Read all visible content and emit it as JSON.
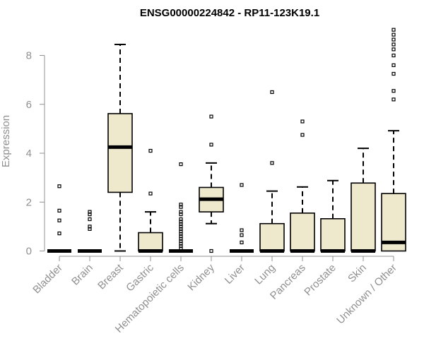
{
  "chart_data": {
    "type": "boxplot",
    "title": "ENSG00000224842 - RP11-123K19.1",
    "ylabel": "Expression",
    "xlabel": "",
    "ylim": [
      0,
      9.2
    ],
    "yticks": [
      0,
      2,
      4,
      6,
      8
    ],
    "grid": false,
    "legend": "none",
    "colors": {
      "box_fill": "#EEE8CD",
      "box_stroke": "#000000",
      "median": "#000000",
      "axis": "#909090",
      "title": "#000000"
    },
    "categories": [
      "Bladder",
      "Brain",
      "Breast",
      "Gastric",
      "Hematopoietic cells",
      "Kidney",
      "Liver",
      "Lung",
      "Pancreas",
      "Prostate",
      "Skin",
      "Unknown / Other"
    ],
    "series": [
      {
        "category": "Bladder",
        "q1": 0,
        "median": 0,
        "q3": 0,
        "whisker_low": 0,
        "whisker_high": 0,
        "outliers": [
          0.72,
          1.25,
          1.65,
          2.65
        ]
      },
      {
        "category": "Brain",
        "q1": 0,
        "median": 0,
        "q3": 0,
        "whisker_low": 0,
        "whisker_high": 0,
        "outliers": [
          0.9,
          1.0,
          1.3,
          1.5,
          1.6
        ]
      },
      {
        "category": "Breast",
        "q1": 2.4,
        "median": 4.25,
        "q3": 5.62,
        "whisker_low": 0,
        "whisker_high": 8.45,
        "outliers": []
      },
      {
        "category": "Gastric",
        "q1": 0,
        "median": 0,
        "q3": 0.75,
        "whisker_low": 0,
        "whisker_high": 1.6,
        "outliers": [
          2.35,
          4.1
        ]
      },
      {
        "category": "Hematopoietic cells",
        "q1": 0,
        "median": 0,
        "q3": 0,
        "whisker_low": 0,
        "whisker_high": 0,
        "outliers": [
          0.1,
          0.2,
          0.3,
          0.4,
          0.5,
          0.6,
          0.7,
          0.8,
          0.9,
          1.0,
          1.1,
          1.2,
          1.3,
          1.5,
          1.6,
          1.8,
          1.9,
          3.55
        ]
      },
      {
        "category": "Kidney",
        "q1": 1.6,
        "median": 2.12,
        "q3": 2.6,
        "whisker_low": 1.12,
        "whisker_high": 3.6,
        "outliers": [
          0,
          4.35,
          5.5
        ]
      },
      {
        "category": "Liver",
        "q1": 0,
        "median": 0,
        "q3": 0,
        "whisker_low": 0,
        "whisker_high": 0,
        "outliers": [
          0.35,
          0.65,
          0.85,
          2.7
        ]
      },
      {
        "category": "Lung",
        "q1": 0,
        "median": 0,
        "q3": 1.12,
        "whisker_low": 0,
        "whisker_high": 2.45,
        "outliers": [
          3.6,
          6.5
        ]
      },
      {
        "category": "Pancreas",
        "q1": 0,
        "median": 0,
        "q3": 1.55,
        "whisker_low": 0,
        "whisker_high": 2.62,
        "outliers": [
          4.75,
          5.3
        ]
      },
      {
        "category": "Prostate",
        "q1": 0,
        "median": 0,
        "q3": 1.32,
        "whisker_low": 0,
        "whisker_high": 2.88,
        "outliers": []
      },
      {
        "category": "Skin",
        "q1": 0,
        "median": 0,
        "q3": 2.78,
        "whisker_low": 0,
        "whisker_high": 4.2,
        "outliers": []
      },
      {
        "category": "Unknown / Other",
        "q1": 0,
        "median": 0.35,
        "q3": 2.35,
        "whisker_low": 0,
        "whisker_high": 4.92,
        "outliers": [
          6.2,
          6.55,
          7.25,
          7.6,
          8.0,
          8.25,
          8.45,
          8.65,
          8.85,
          9.05
        ]
      }
    ]
  }
}
